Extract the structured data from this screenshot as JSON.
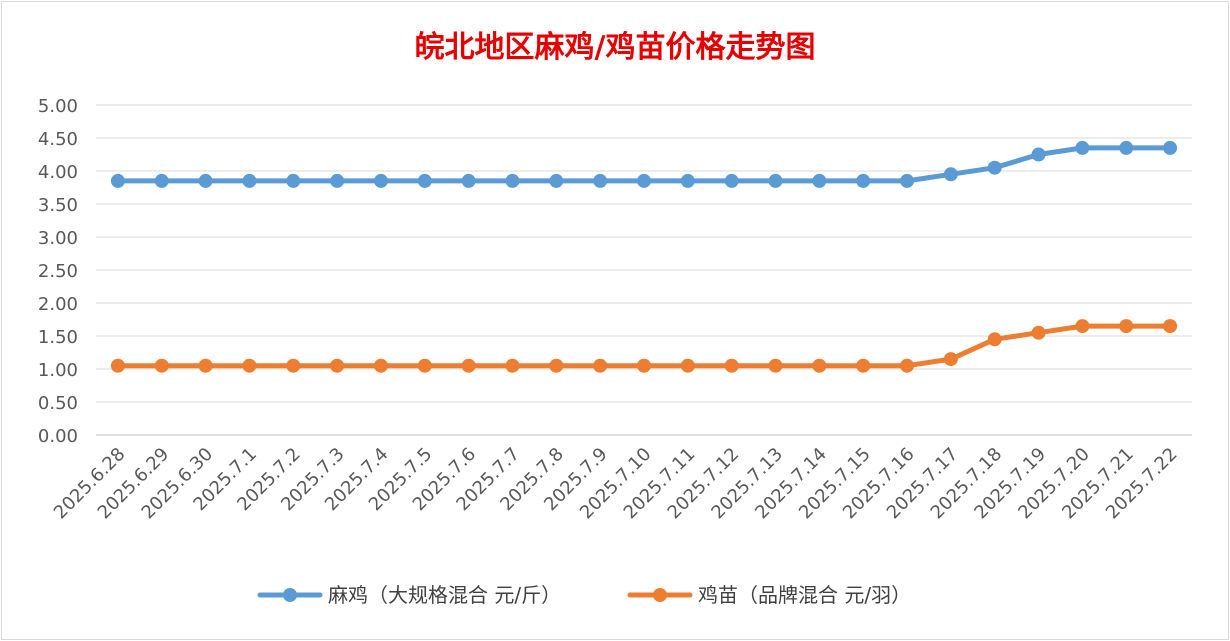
{
  "chart_data": {
    "type": "line",
    "title": "皖北地区麻鸡/鸡苗价格走势图",
    "categories": [
      "2025.6.28",
      "2025.6.29",
      "2025.6.30",
      "2025.7.1",
      "2025.7.2",
      "2025.7.3",
      "2025.7.4",
      "2025.7.5",
      "2025.7.6",
      "2025.7.7",
      "2025.7.8",
      "2025.7.9",
      "2025.7.10",
      "2025.7.11",
      "2025.7.12",
      "2025.7.13",
      "2025.7.14",
      "2025.7.15",
      "2025.7.16",
      "2025.7.17",
      "2025.7.18",
      "2025.7.19",
      "2025.7.20",
      "2025.7.21",
      "2025.7.22"
    ],
    "series": [
      {
        "name": "麻鸡（大规格混合 元/斤）",
        "color": "#5b9bd5",
        "values": [
          3.85,
          3.85,
          3.85,
          3.85,
          3.85,
          3.85,
          3.85,
          3.85,
          3.85,
          3.85,
          3.85,
          3.85,
          3.85,
          3.85,
          3.85,
          3.85,
          3.85,
          3.85,
          3.85,
          3.95,
          4.05,
          4.25,
          4.35,
          4.35,
          4.35
        ]
      },
      {
        "name": "鸡苗（品牌混合 元/羽）",
        "color": "#ed7d31",
        "values": [
          1.05,
          1.05,
          1.05,
          1.05,
          1.05,
          1.05,
          1.05,
          1.05,
          1.05,
          1.05,
          1.05,
          1.05,
          1.05,
          1.05,
          1.05,
          1.05,
          1.05,
          1.05,
          1.05,
          1.15,
          1.45,
          1.55,
          1.65,
          1.65,
          1.65
        ]
      }
    ],
    "ylim": [
      0,
      5
    ],
    "yticks": [
      "0.00",
      "0.50",
      "1.00",
      "1.50",
      "2.00",
      "2.50",
      "3.00",
      "3.50",
      "4.00",
      "4.50",
      "5.00"
    ],
    "grid": true,
    "legend": "bottom"
  }
}
